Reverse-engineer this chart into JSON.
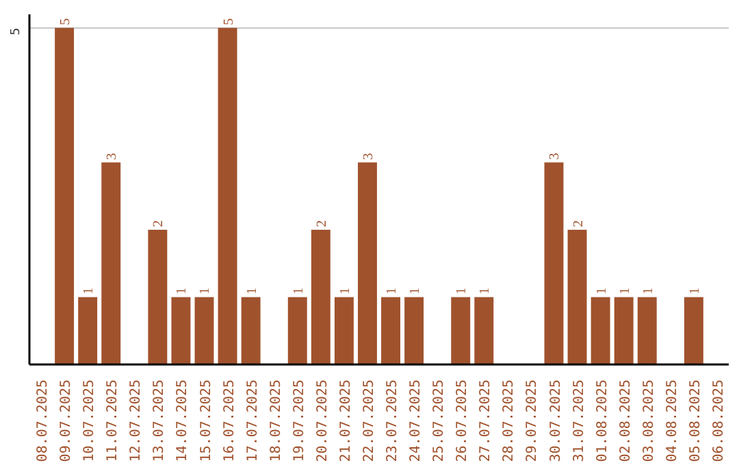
{
  "chart_data": {
    "type": "bar",
    "categories": [
      "08.07.2025",
      "09.07.2025",
      "10.07.2025",
      "11.07.2025",
      "12.07.2025",
      "13.07.2025",
      "14.07.2025",
      "15.07.2025",
      "16.07.2025",
      "17.07.2025",
      "18.07.2025",
      "19.07.2025",
      "20.07.2025",
      "21.07.2025",
      "22.07.2025",
      "23.07.2025",
      "24.07.2025",
      "25.07.2025",
      "26.07.2025",
      "27.07.2025",
      "28.07.2025",
      "29.07.2025",
      "30.07.2025",
      "31.07.2025",
      "01.08.2025",
      "02.08.2025",
      "03.08.2025",
      "04.08.2025",
      "05.08.2025",
      "06.08.2025"
    ],
    "values": [
      0,
      5,
      1,
      3,
      0,
      2,
      1,
      1,
      5,
      1,
      0,
      1,
      2,
      1,
      3,
      1,
      1,
      0,
      1,
      1,
      0,
      0,
      3,
      2,
      1,
      1,
      1,
      0,
      1,
      0
    ],
    "value_labels": [
      null,
      "5",
      "1",
      "3",
      null,
      "2",
      "1",
      "1",
      "5",
      "1",
      null,
      "1",
      "2",
      "1",
      "3",
      "1",
      "1",
      null,
      "1",
      "1",
      null,
      null,
      "3",
      "2",
      "1",
      "1",
      "1",
      null,
      "1",
      null
    ],
    "color": "#a0522d",
    "ylim": [
      0,
      5.2
    ],
    "yticks": [
      5
    ],
    "grid": "y"
  }
}
